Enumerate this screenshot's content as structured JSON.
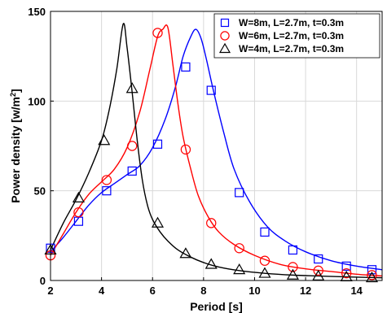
{
  "chart_data": {
    "type": "line",
    "title": "",
    "xlabel": "Period [s]",
    "ylabel": "Power density [w/m",
    "ylabel_sup": "2",
    "ylabel_end": "]",
    "xlim": [
      2,
      15
    ],
    "ylim": [
      0,
      150
    ],
    "xticks": [
      2,
      4,
      6,
      8,
      10,
      12,
      14
    ],
    "yticks": [
      0,
      50,
      100,
      150
    ],
    "grid": true,
    "legend_position": "top-right",
    "series": [
      {
        "name": "W=8m, L=2.7m, t=0.3m",
        "color": "#0000ff",
        "marker": "square",
        "curve_x": [
          2.0,
          2.5,
          3.0,
          3.5,
          4.0,
          4.5,
          5.0,
          5.5,
          6.0,
          6.5,
          6.9,
          7.2,
          7.5,
          7.7,
          7.9,
          8.1,
          8.4,
          8.8,
          9.2,
          9.8,
          10.5,
          11.2,
          12.0,
          13.0,
          14.0,
          15.0
        ],
        "curve_y": [
          16,
          24,
          33,
          42,
          49,
          54,
          59,
          64,
          74,
          90,
          108,
          125,
          136,
          140,
          135,
          124,
          105,
          82,
          62,
          44,
          30,
          22,
          16,
          11,
          8,
          6
        ],
        "x": [
          2.0,
          3.1,
          4.2,
          5.2,
          6.2,
          7.3,
          8.3,
          9.4,
          10.4,
          11.5,
          12.5,
          13.6,
          14.6
        ],
        "y": [
          18,
          33,
          50,
          61,
          76,
          119,
          106,
          49,
          27,
          17,
          12,
          8,
          6
        ]
      },
      {
        "name": "W=6m, L=2.7m, t=0.3m",
        "color": "#ff0000",
        "marker": "circle",
        "curve_x": [
          2.0,
          2.5,
          3.0,
          3.5,
          4.0,
          4.5,
          5.0,
          5.5,
          5.9,
          6.2,
          6.4,
          6.6,
          6.8,
          7.0,
          7.2,
          7.5,
          7.8,
          8.2,
          8.6,
          9.2,
          10.0,
          11.0,
          12.0,
          13.0,
          14.0,
          15.0
        ],
        "curve_y": [
          14,
          26,
          38,
          48,
          55,
          62,
          74,
          94,
          118,
          136,
          140,
          141,
          120,
          98,
          80,
          62,
          47,
          35,
          27,
          20,
          14,
          9,
          6.5,
          5,
          3.5,
          2.5
        ],
        "x": [
          2.0,
          3.1,
          4.2,
          5.2,
          6.2,
          7.3,
          8.3,
          9.4,
          10.4,
          11.5,
          12.5,
          13.6,
          14.6
        ],
        "y": [
          14,
          38,
          56,
          75,
          138,
          73,
          32,
          18,
          11,
          7.5,
          5.5,
          4,
          3
        ]
      },
      {
        "name": "W=4m, L=2.7m, t=0.3m",
        "color": "#000000",
        "marker": "triangle",
        "curve_x": [
          2.0,
          2.5,
          3.0,
          3.5,
          4.0,
          4.3,
          4.6,
          4.85,
          5.0,
          5.2,
          5.4,
          5.6,
          5.8,
          6.0,
          6.3,
          6.6,
          7.0,
          7.5,
          8.0,
          8.6,
          9.4,
          10.4,
          11.5,
          12.5,
          13.6,
          15.0
        ],
        "curve_y": [
          17,
          32,
          45,
          60,
          78,
          95,
          118,
          143,
          130,
          105,
          78,
          56,
          42,
          34,
          27,
          22,
          17,
          13,
          10,
          7.5,
          5.5,
          4,
          3,
          2.5,
          2,
          1.5
        ],
        "x": [
          2.0,
          3.1,
          4.1,
          5.2,
          6.2,
          7.3,
          8.3,
          9.4,
          10.4,
          11.5,
          12.5,
          13.6,
          14.6
        ],
        "y": [
          17,
          46,
          78,
          107,
          32,
          15,
          9,
          6,
          4,
          3,
          2.5,
          2,
          1.5
        ]
      }
    ]
  }
}
